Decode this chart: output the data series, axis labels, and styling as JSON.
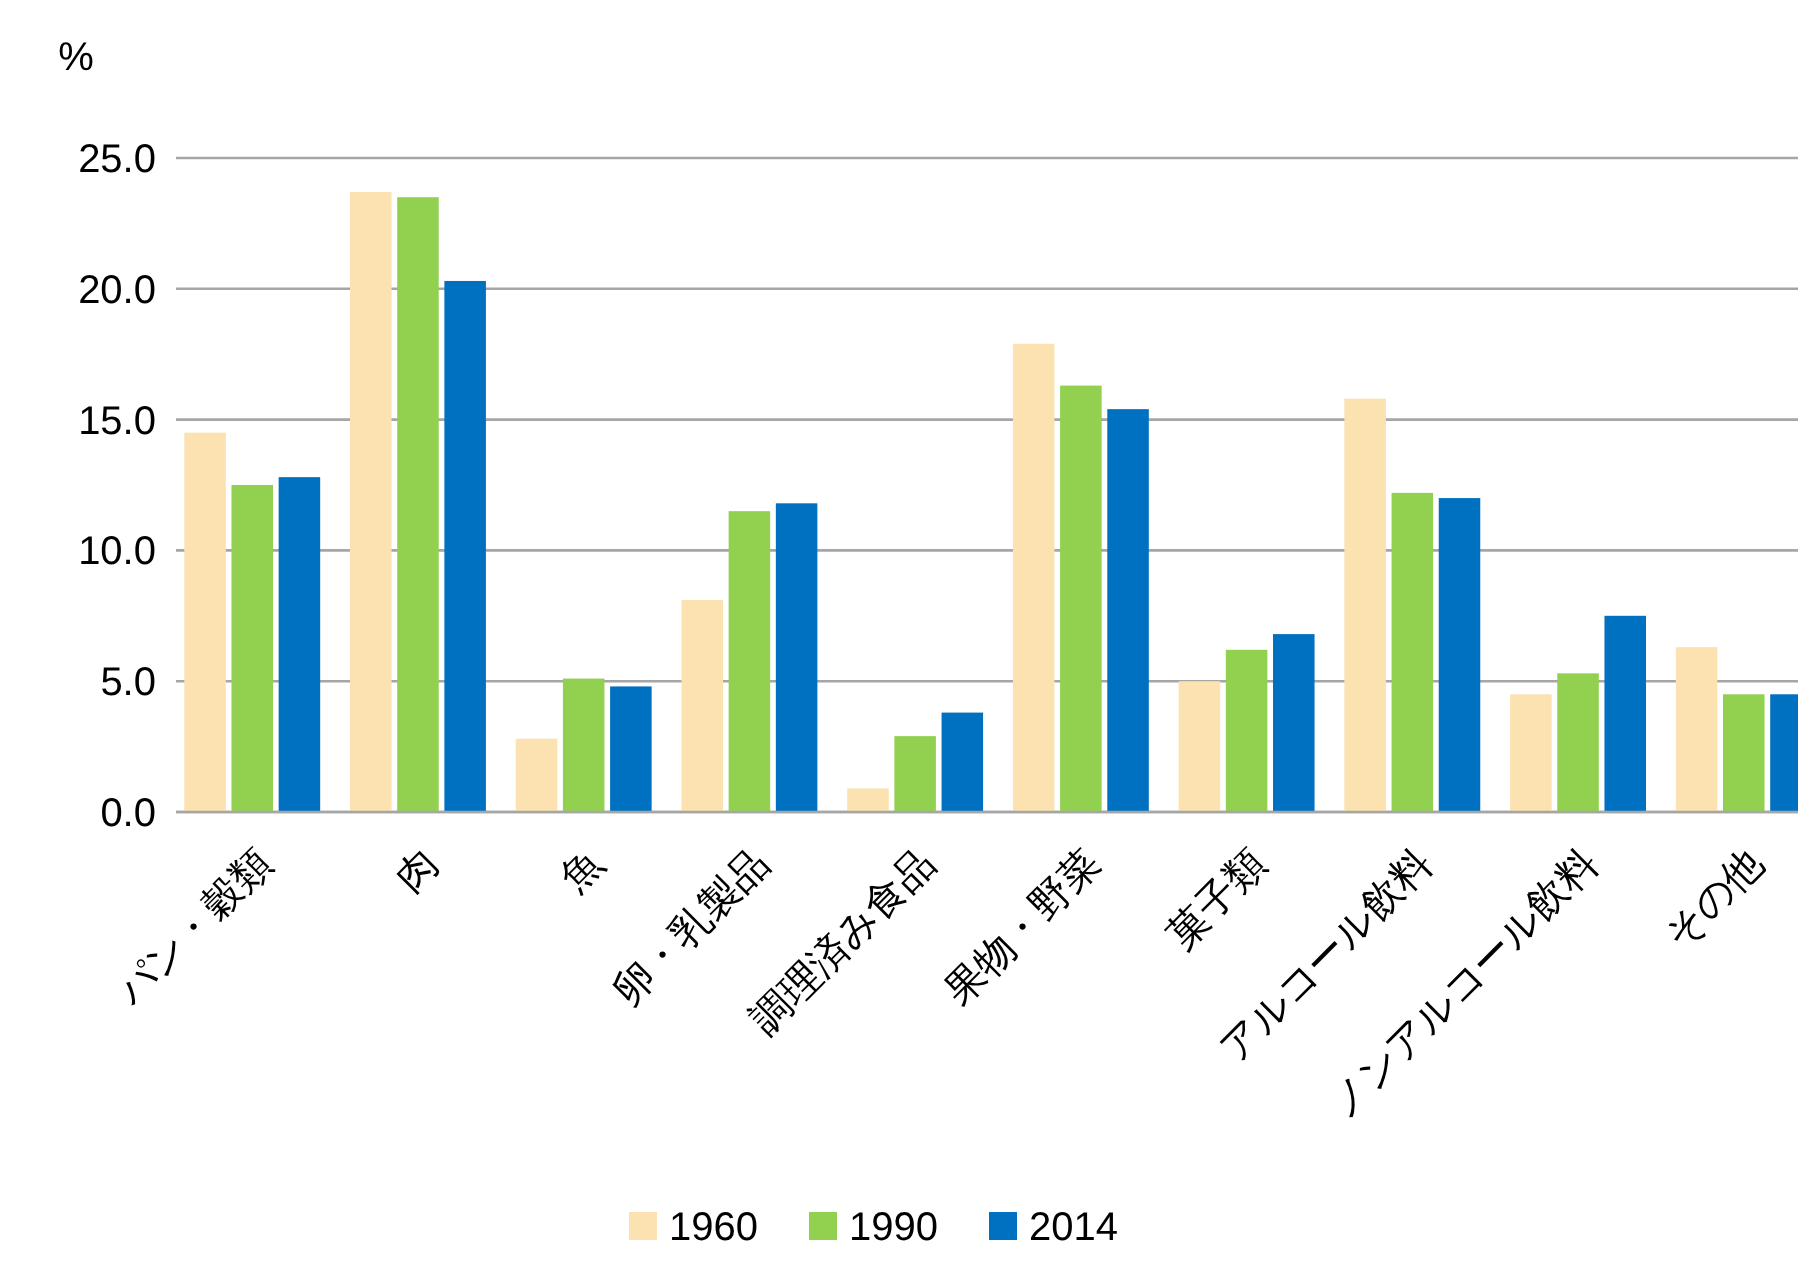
{
  "chart_data": {
    "type": "bar",
    "ylabel": "%",
    "categories": [
      "パン・穀類",
      "肉",
      "魚",
      "卵・乳製品",
      "調理済み食品",
      "果物・野菜",
      "菓子類",
      "アルコール飲料",
      "ノンアルコール飲料",
      "その他"
    ],
    "series": [
      {
        "name": "1960",
        "color": "#fbe2b0",
        "values": [
          14.5,
          23.7,
          2.8,
          8.1,
          0.9,
          17.9,
          5.0,
          15.8,
          4.5,
          6.3
        ]
      },
      {
        "name": "1990",
        "color": "#92d050",
        "values": [
          12.5,
          23.5,
          5.1,
          11.5,
          2.9,
          16.3,
          6.2,
          12.2,
          5.3,
          4.5
        ]
      },
      {
        "name": "2014",
        "color": "#0070c0",
        "values": [
          12.8,
          20.3,
          4.8,
          11.8,
          3.8,
          15.4,
          6.8,
          12.0,
          7.5,
          4.5
        ]
      }
    ],
    "ylim": [
      0,
      25
    ],
    "yticks": [
      {
        "value": 0,
        "label": "0.0"
      },
      {
        "value": 5,
        "label": "5.0"
      },
      {
        "value": 10,
        "label": "10.0"
      },
      {
        "value": 15,
        "label": "15.0"
      },
      {
        "value": 20,
        "label": "20.0"
      },
      {
        "value": 25,
        "label": "25.0"
      }
    ],
    "grid": "y",
    "legend": "bottom"
  }
}
